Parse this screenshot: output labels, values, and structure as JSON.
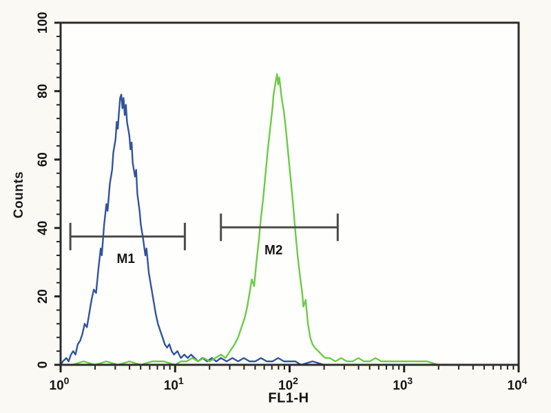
{
  "figure": {
    "bg_color": "#fbf9f3",
    "plot_bg_color": "#fefefc",
    "frame_color": "#2d2d2d",
    "tick_color": "#222222",
    "text_color": "#161616",
    "gate_color": "#4a4a4a"
  },
  "chart_data": {
    "type": "line",
    "title": "",
    "xlabel": "FL1-H",
    "ylabel": "Counts",
    "x_scale": "log10",
    "xlim_log": [
      0,
      4
    ],
    "ylim": [
      0,
      100
    ],
    "x_tick_exponents": [
      0,
      1,
      2,
      3,
      4
    ],
    "x_tick_base": "10",
    "y_ticks": [
      0,
      20,
      40,
      60,
      80,
      100
    ],
    "y_minor_step": 4,
    "grid": "off",
    "legend": "none",
    "series": [
      {
        "name": "blue-histogram-M1-population",
        "color": "#30539e",
        "peak_x": 3.5,
        "peak_count": 79,
        "points": [
          [
            0,
            0
          ],
          [
            0.02,
            1
          ],
          [
            0.05,
            2
          ],
          [
            0.07,
            1
          ],
          [
            0.09,
            3
          ],
          [
            0.11,
            4
          ],
          [
            0.13,
            3
          ],
          [
            0.15,
            6
          ],
          [
            0.17,
            7
          ],
          [
            0.19,
            9
          ],
          [
            0.21,
            12
          ],
          [
            0.23,
            11
          ],
          [
            0.25,
            15
          ],
          [
            0.27,
            19
          ],
          [
            0.29,
            22
          ],
          [
            0.31,
            21
          ],
          [
            0.33,
            28
          ],
          [
            0.35,
            34
          ],
          [
            0.36,
            32
          ],
          [
            0.38,
            41
          ],
          [
            0.4,
            47
          ],
          [
            0.41,
            45
          ],
          [
            0.43,
            53
          ],
          [
            0.45,
            57
          ],
          [
            0.46,
            62
          ],
          [
            0.48,
            66
          ],
          [
            0.49,
            71
          ],
          [
            0.5,
            69
          ],
          [
            0.51,
            74
          ],
          [
            0.52,
            78
          ],
          [
            0.53,
            79
          ],
          [
            0.54,
            75
          ],
          [
            0.55,
            78
          ],
          [
            0.56,
            73
          ],
          [
            0.57,
            76
          ],
          [
            0.58,
            71
          ],
          [
            0.6,
            67
          ],
          [
            0.61,
            63
          ],
          [
            0.62,
            65
          ],
          [
            0.63,
            59
          ],
          [
            0.65,
            55
          ],
          [
            0.66,
            57
          ],
          [
            0.67,
            50
          ],
          [
            0.69,
            45
          ],
          [
            0.7,
            41
          ],
          [
            0.72,
            37
          ],
          [
            0.74,
            32
          ],
          [
            0.75,
            34
          ],
          [
            0.77,
            27
          ],
          [
            0.79,
            23
          ],
          [
            0.81,
            19
          ],
          [
            0.83,
            15
          ],
          [
            0.85,
            12
          ],
          [
            0.87,
            10
          ],
          [
            0.89,
            8
          ],
          [
            0.91,
            6
          ],
          [
            0.93,
            5
          ],
          [
            0.95,
            6
          ],
          [
            0.97,
            4
          ],
          [
            0.99,
            3
          ],
          [
            1.02,
            4
          ],
          [
            1.05,
            2
          ],
          [
            1.08,
            3
          ],
          [
            1.11,
            2
          ],
          [
            1.14,
            3
          ],
          [
            1.17,
            2
          ],
          [
            1.2,
            1
          ],
          [
            1.24,
            2
          ],
          [
            1.28,
            1
          ],
          [
            1.32,
            2
          ],
          [
            1.36,
            1
          ],
          [
            1.4,
            2
          ],
          [
            1.45,
            1
          ],
          [
            1.5,
            2
          ],
          [
            1.55,
            1
          ],
          [
            1.6,
            2
          ],
          [
            1.65,
            1
          ],
          [
            1.7,
            1
          ],
          [
            1.75,
            2
          ],
          [
            1.8,
            1
          ],
          [
            1.85,
            1
          ],
          [
            1.9,
            2
          ],
          [
            1.95,
            1
          ],
          [
            2,
            1
          ],
          [
            2.05,
            1
          ],
          [
            2.1,
            0
          ],
          [
            2.2,
            1
          ],
          [
            2.3,
            0
          ],
          [
            2.5,
            0
          ],
          [
            2.7,
            0
          ],
          [
            3,
            0
          ],
          [
            3.5,
            0
          ],
          [
            4,
            0
          ]
        ]
      },
      {
        "name": "green-histogram-M2-population",
        "color": "#6ccb44",
        "peak_x": 78,
        "peak_count": 85,
        "points": [
          [
            0,
            0
          ],
          [
            0.1,
            0
          ],
          [
            0.2,
            1
          ],
          [
            0.3,
            0
          ],
          [
            0.4,
            1
          ],
          [
            0.5,
            0
          ],
          [
            0.6,
            1
          ],
          [
            0.7,
            0
          ],
          [
            0.8,
            1
          ],
          [
            0.9,
            1
          ],
          [
            1,
            0
          ],
          [
            1.05,
            1
          ],
          [
            1.1,
            1
          ],
          [
            1.15,
            2
          ],
          [
            1.2,
            1
          ],
          [
            1.25,
            2
          ],
          [
            1.3,
            1
          ],
          [
            1.35,
            2
          ],
          [
            1.4,
            3
          ],
          [
            1.44,
            2
          ],
          [
            1.48,
            4
          ],
          [
            1.52,
            6
          ],
          [
            1.55,
            8
          ],
          [
            1.58,
            11
          ],
          [
            1.61,
            14
          ],
          [
            1.63,
            17
          ],
          [
            1.65,
            21
          ],
          [
            1.67,
            25
          ],
          [
            1.69,
            23
          ],
          [
            1.71,
            30
          ],
          [
            1.73,
            36
          ],
          [
            1.75,
            43
          ],
          [
            1.77,
            49
          ],
          [
            1.79,
            56
          ],
          [
            1.81,
            63
          ],
          [
            1.83,
            69
          ],
          [
            1.85,
            75
          ],
          [
            1.86,
            79
          ],
          [
            1.88,
            83
          ],
          [
            1.89,
            85
          ],
          [
            1.9,
            82
          ],
          [
            1.91,
            84
          ],
          [
            1.93,
            78
          ],
          [
            1.95,
            74
          ],
          [
            1.97,
            68
          ],
          [
            1.99,
            61
          ],
          [
            2.01,
            54
          ],
          [
            2.03,
            47
          ],
          [
            2.05,
            39
          ],
          [
            2.07,
            32
          ],
          [
            2.09,
            26
          ],
          [
            2.11,
            21
          ],
          [
            2.12,
            17
          ],
          [
            2.14,
            19
          ],
          [
            2.16,
            12
          ],
          [
            2.18,
            8
          ],
          [
            2.2,
            6
          ],
          [
            2.22,
            5
          ],
          [
            2.25,
            4
          ],
          [
            2.28,
            3
          ],
          [
            2.31,
            2
          ],
          [
            2.35,
            2
          ],
          [
            2.4,
            1
          ],
          [
            2.45,
            2
          ],
          [
            2.5,
            1
          ],
          [
            2.55,
            1
          ],
          [
            2.6,
            2
          ],
          [
            2.65,
            1
          ],
          [
            2.7,
            1
          ],
          [
            2.75,
            2
          ],
          [
            2.8,
            1
          ],
          [
            2.85,
            1
          ],
          [
            2.9,
            1
          ],
          [
            2.95,
            1
          ],
          [
            3,
            1
          ],
          [
            3.05,
            1
          ],
          [
            3.1,
            1
          ],
          [
            3.2,
            1
          ],
          [
            3.3,
            0
          ],
          [
            3.5,
            0
          ],
          [
            3.75,
            0
          ],
          [
            4,
            0
          ]
        ]
      }
    ],
    "markers": [
      {
        "label": "M1",
        "from_log": 0.085,
        "to_log": 1.085,
        "count": 37.5,
        "label_log": 0.57,
        "label_count": 31
      },
      {
        "label": "M2",
        "from_log": 1.4,
        "to_log": 2.42,
        "count": 40.2,
        "label_log": 1.86,
        "label_count": 33.5
      }
    ]
  }
}
